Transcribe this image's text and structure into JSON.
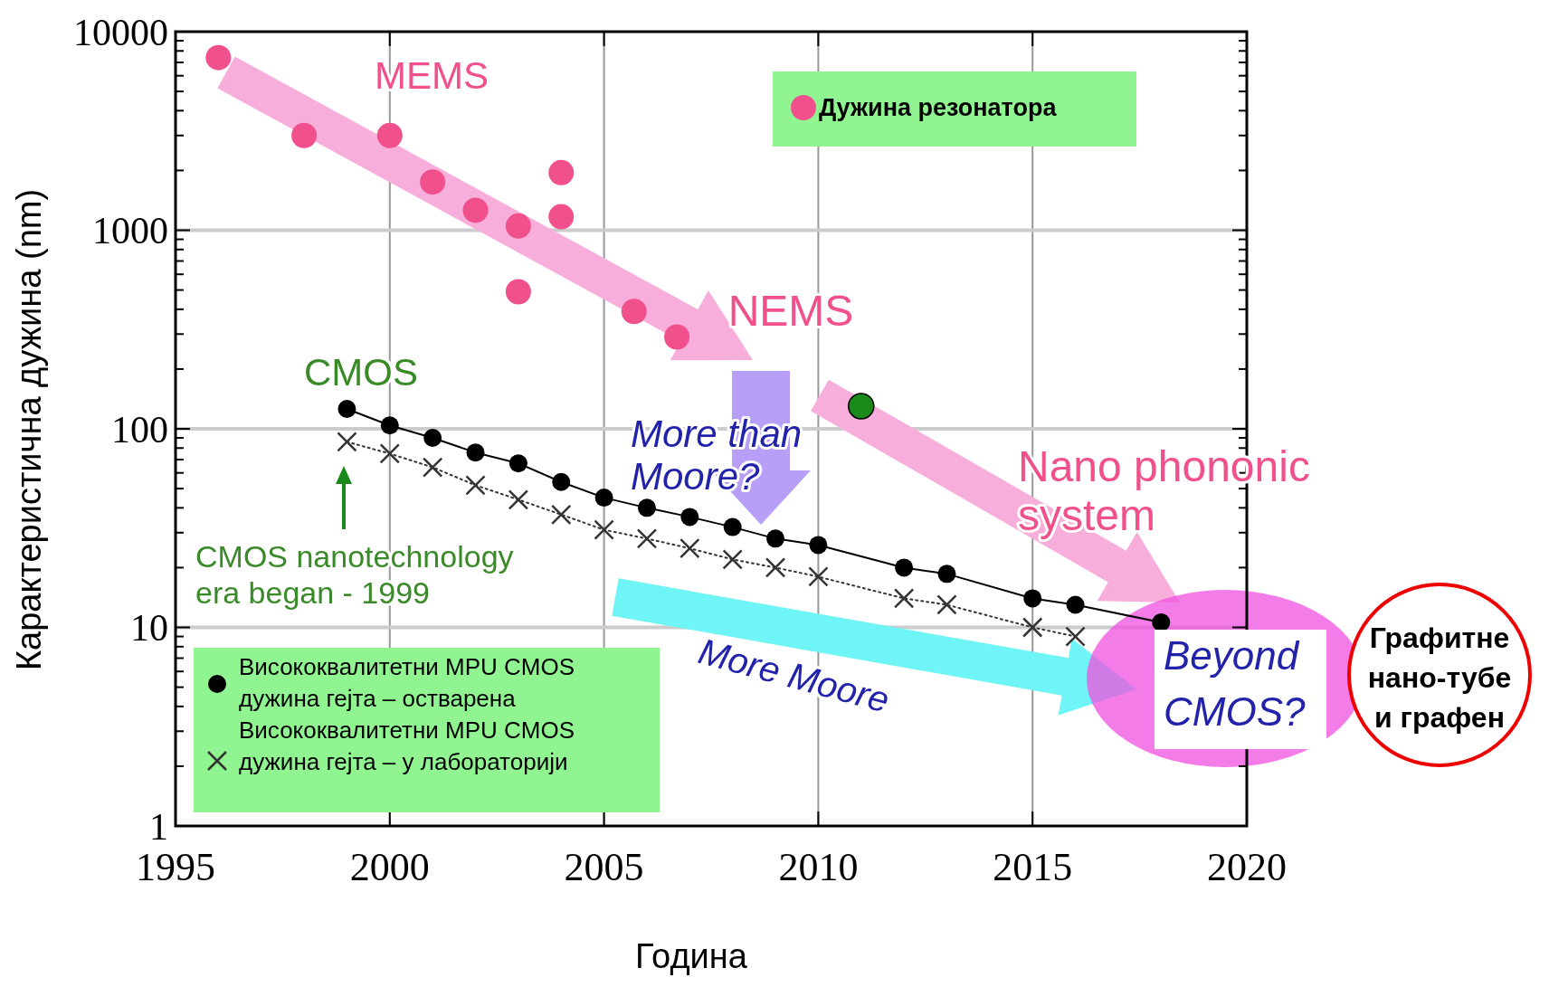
{
  "chart_data": {
    "type": "scatter",
    "xlabel": "Година",
    "ylabel": "Карактеристична дужина (nm)",
    "xlim": [
      1995,
      2020
    ],
    "xticks": [
      1995,
      2000,
      2005,
      2010,
      2015,
      2020
    ],
    "ylim": [
      1,
      10000
    ],
    "log": "y",
    "grid": true,
    "legend": "bottom left",
    "yticks": [
      1,
      {
        "value": 2,
        "label": null
      },
      {
        "value": 3,
        "label": null
      },
      {
        "value": 4,
        "label": null
      },
      {
        "value": 5,
        "label": null
      },
      {
        "value": 6,
        "label": null
      },
      {
        "value": 7,
        "label": null
      },
      {
        "value": 8,
        "label": null
      },
      {
        "value": 9,
        "label": null
      },
      10,
      {
        "value": 20,
        "label": null
      },
      {
        "value": 30,
        "label": null
      },
      {
        "value": 40,
        "label": null
      },
      {
        "value": 50,
        "label": null
      },
      {
        "value": 60,
        "label": null
      },
      {
        "value": 70,
        "label": null
      },
      {
        "value": 80,
        "label": null
      },
      {
        "value": 90,
        "label": null
      },
      100,
      {
        "value": 200,
        "label": null
      },
      {
        "value": 300,
        "label": null
      },
      {
        "value": 400,
        "label": null
      },
      {
        "value": 500,
        "label": null
      },
      {
        "value": 600,
        "label": null
      },
      {
        "value": 700,
        "label": null
      },
      {
        "value": 800,
        "label": null
      },
      {
        "value": 900,
        "label": null
      },
      1000,
      {
        "value": 2000,
        "label": null
      },
      {
        "value": 3000,
        "label": null
      },
      {
        "value": 4000,
        "label": null
      },
      {
        "value": 5000,
        "label": null
      },
      {
        "value": 6000,
        "label": null
      },
      {
        "value": 7000,
        "label": null
      },
      {
        "value": 8000,
        "label": null
      },
      {
        "value": 9000,
        "label": null
      },
      10000
    ],
    "annotations": [
      "MEMS",
      "NEMS",
      "CMOS",
      "CMOS nanotechnology\nera began - 1999",
      "More than\nMoore?",
      "Nano phononic\nsystem",
      "More Moore",
      "Beyond\nCMOS?",
      "Графитне\nнано-тубе\nи графен"
    ],
    "series": [
      {
        "name": "Дужина резонатора",
        "marker": "circle",
        "color": "#f0508c",
        "x": [
          1996,
          1998,
          2000,
          2001,
          2002,
          2003,
          2003,
          2004,
          2004,
          2005.7,
          2006.7
        ],
        "values": [
          7400,
          3000,
          3000,
          1750,
          1260,
          1050,
          490,
          1950,
          1170,
          390,
          290
        ]
      },
      {
        "marker": "circle",
        "color": "#1a8a1a",
        "x": [
          2011
        ],
        "values": [
          130
        ]
      },
      {
        "name": "Висококвалитетни MPU CMOS дужина гејта – остварена",
        "type": "line",
        "marker": "circle",
        "line_style": "solid",
        "color": "#000000",
        "x": [
          1999,
          2000,
          2001,
          2002,
          2003,
          2004,
          2005,
          2006,
          2007,
          2008,
          2009,
          2010,
          2012,
          2013,
          2015,
          2016,
          2018
        ],
        "values": [
          126,
          104,
          90,
          76,
          67,
          54,
          45,
          40,
          36,
          32,
          28,
          26,
          20,
          18.6,
          14,
          13,
          10.6
        ]
      },
      {
        "name": "Висококвалитетни MPU CMOS дужина гејта – у лабораторији",
        "type": "line",
        "marker": "cross",
        "line_style": "dotted",
        "color": "#333333",
        "x": [
          1999,
          2000,
          2001,
          2002,
          2003,
          2004,
          2005,
          2006,
          2007,
          2008,
          2009,
          2010,
          2012,
          2013,
          2015,
          2016
        ],
        "values": [
          86,
          75,
          64,
          52,
          44,
          37,
          31,
          28,
          25,
          22,
          20,
          18,
          14,
          13,
          10,
          9
        ]
      }
    ]
  }
}
